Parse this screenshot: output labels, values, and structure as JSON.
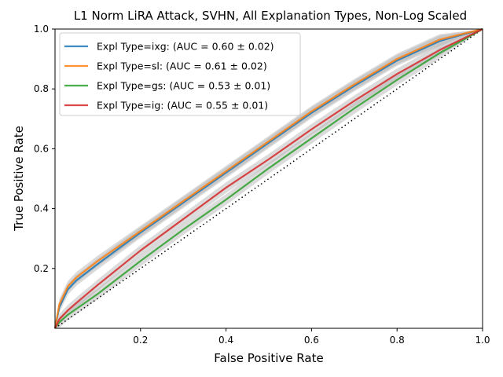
{
  "chart_data": {
    "type": "line",
    "title": "L1 Norm LiRA Attack, SVHN, All Explanation Types, Non-Log Scaled",
    "xlabel": "False Positive Rate",
    "ylabel": "True Positive Rate",
    "xlim": [
      0,
      1
    ],
    "ylim": [
      0,
      1
    ],
    "x_ticks": [
      "0.2",
      "0.4",
      "0.6",
      "0.8",
      "1.0"
    ],
    "y_ticks": [
      "0.2",
      "0.4",
      "0.6",
      "0.8",
      "1.0"
    ],
    "grid": false,
    "legend_position": "upper-left",
    "series": [
      {
        "name": "Expl Type=ixg: (AUC = 0.60 ± 0.02)",
        "color": "#1f77b4",
        "auc": 0.6,
        "x": [
          0,
          0.01,
          0.03,
          0.05,
          0.1,
          0.2,
          0.3,
          0.4,
          0.5,
          0.6,
          0.7,
          0.8,
          0.9,
          1.0
        ],
        "y": [
          0,
          0.07,
          0.13,
          0.16,
          0.215,
          0.32,
          0.42,
          0.52,
          0.62,
          0.72,
          0.81,
          0.895,
          0.96,
          1.0
        ]
      },
      {
        "name": "Expl Type=sl: (AUC = 0.61 ± 0.02)",
        "color": "#ff7f0e",
        "auc": 0.61,
        "x": [
          0,
          0.01,
          0.03,
          0.05,
          0.1,
          0.2,
          0.3,
          0.4,
          0.5,
          0.6,
          0.7,
          0.8,
          0.9,
          1.0
        ],
        "y": [
          0,
          0.08,
          0.14,
          0.17,
          0.225,
          0.325,
          0.425,
          0.525,
          0.625,
          0.725,
          0.815,
          0.9,
          0.965,
          1.0
        ]
      },
      {
        "name": "Expl Type=gs: (AUC = 0.53 ± 0.01)",
        "color": "#2ca02c",
        "auc": 0.53,
        "x": [
          0,
          0.01,
          0.03,
          0.05,
          0.1,
          0.2,
          0.3,
          0.4,
          0.5,
          0.6,
          0.7,
          0.8,
          0.9,
          1.0
        ],
        "y": [
          0,
          0.02,
          0.045,
          0.065,
          0.115,
          0.225,
          0.33,
          0.43,
          0.535,
          0.635,
          0.735,
          0.83,
          0.92,
          1.0
        ]
      },
      {
        "name": "Expl Type=ig: (AUC = 0.55 ± 0.01)",
        "color": "#d62728",
        "auc": 0.55,
        "x": [
          0,
          0.01,
          0.03,
          0.05,
          0.1,
          0.2,
          0.3,
          0.4,
          0.5,
          0.6,
          0.7,
          0.8,
          0.9,
          1.0
        ],
        "y": [
          0,
          0.03,
          0.06,
          0.085,
          0.145,
          0.26,
          0.365,
          0.47,
          0.565,
          0.665,
          0.76,
          0.85,
          0.93,
          1.0
        ]
      }
    ],
    "band": {
      "color": "#b0b0b0",
      "halfwidth": 0.018
    },
    "reference_line": {
      "style": "dotted",
      "color": "#000000",
      "from": [
        0,
        0
      ],
      "to": [
        1,
        1
      ]
    }
  }
}
